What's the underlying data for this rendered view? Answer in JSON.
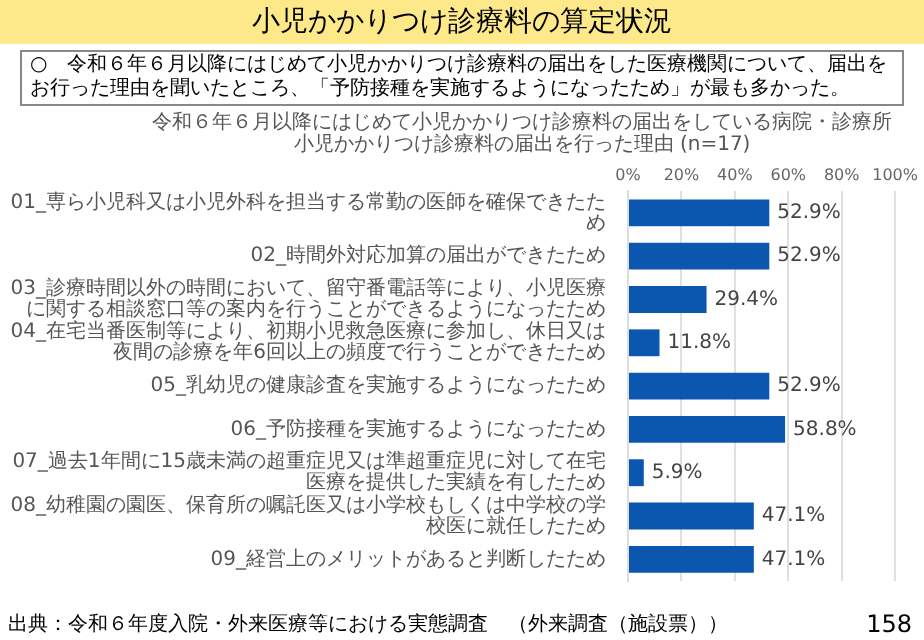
{
  "chart_data": {
    "type": "bar",
    "orientation": "horizontal",
    "title": "小児かかりつけ診療料の算定状況",
    "subtitle": "○　令和６年６月以降にはじめて小児かかりつけ診療料の届出をした医療機関について、届出をお行った理由を聞いたところ、「予防接種を実施するようになったため」が最も多かった。",
    "annotations": [
      "令和６年６月以降にはじめて小児かかりつけ診療料の届出をしている病院・診療所",
      "小児かかりつけ診療料の届出を行った理由 (n=17)",
      "出典：令和６年度入院・外来医療等における実態調査　（外来調査（施設票））",
      "158"
    ],
    "categories": [
      "01_専ら小児科又は小児外科を担当する常勤の医師を確保できたため",
      "02_時間外対応加算の届出ができたため",
      "03_診療時間以外の時間において、留守番電話等により、小児医療に関する相談窓口等の案内を行うことができるようになったため",
      "04_在宅当番医制等により、初期小児救急医療に参加し、休日又は夜間の診療を年6回以上の頻度で行うことができたため",
      "05_乳幼児の健康診査を実施するようになったため",
      "06_予防接種を実施するようになったため",
      "07_過去1年間に15歳未満の超重症児又は準超重症児に対して在宅医療を提供した実績を有したため",
      "08_幼稚園の園医、保育所の嘱託医又は小学校もしくは中学校の学校医に就任したため",
      "09_経営上のメリットがあると判断したため"
    ],
    "values": [
      52.9,
      52.9,
      29.4,
      11.8,
      52.9,
      58.8,
      5.9,
      47.1,
      47.1
    ],
    "value_labels": [
      "52.9%",
      "52.9%",
      "29.4%",
      "11.8%",
      "52.9%",
      "58.8%",
      "5.9%",
      "47.1%",
      "47.1%"
    ],
    "color": "#0b57b0",
    "xlim": [
      0,
      100
    ],
    "xticks": [
      {
        "value": 0,
        "label": "0%"
      },
      {
        "value": 20,
        "label": "20%"
      },
      {
        "value": 40,
        "label": "40%"
      },
      {
        "value": 60,
        "label": "60%"
      },
      {
        "value": 80,
        "label": "80%"
      },
      {
        "value": 100,
        "label": "100%"
      }
    ],
    "grid": "x",
    "legend": false
  }
}
